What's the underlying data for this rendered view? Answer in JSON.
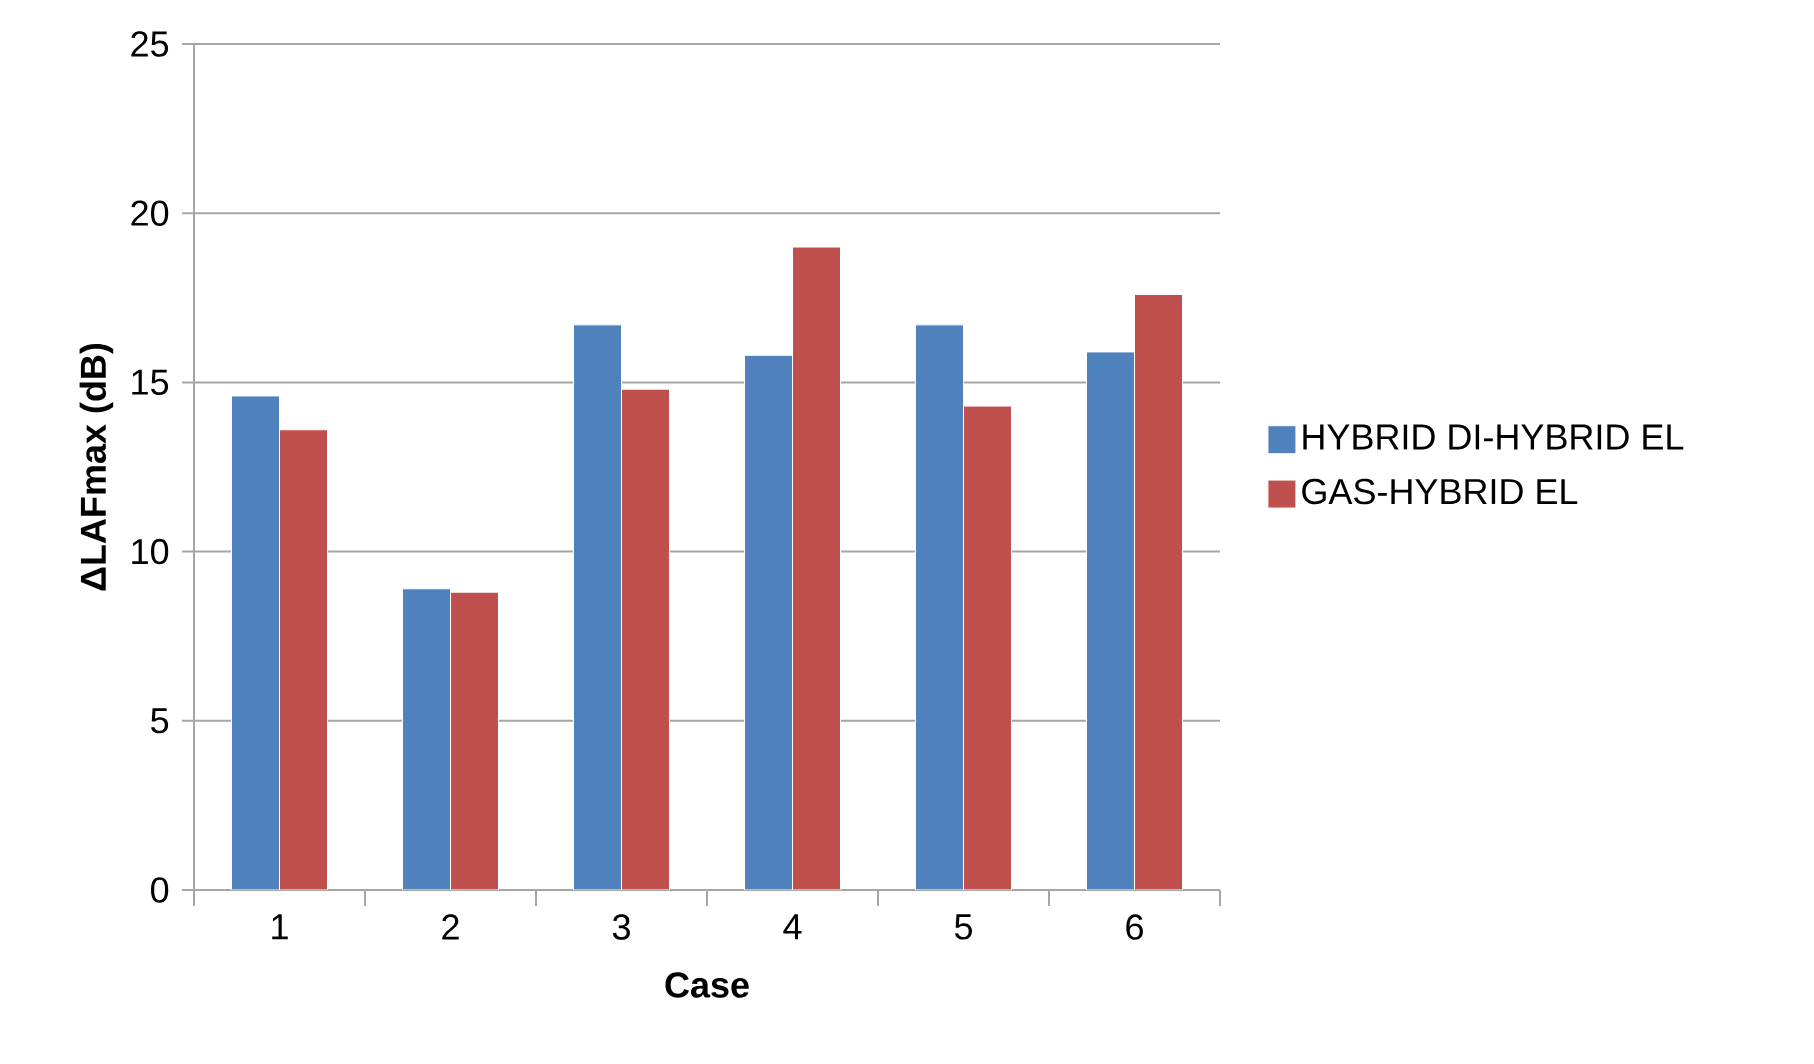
{
  "chart_data": {
    "type": "bar",
    "xlabel": "Case",
    "ylabel": "ΔLAFmax (dB)",
    "categories": [
      "1",
      "2",
      "3",
      "4",
      "5",
      "6"
    ],
    "series": [
      {
        "name": "HYBRID DI-HYBRID EL",
        "color": "#4f81bd",
        "values": [
          14.6,
          8.9,
          16.7,
          15.8,
          16.7,
          15.9
        ]
      },
      {
        "name": "GAS-HYBRID EL",
        "color": "#c0504d",
        "values": [
          13.6,
          8.8,
          14.8,
          19.0,
          14.3,
          17.6
        ]
      }
    ],
    "ylim": [
      0,
      25
    ],
    "yticks": [
      0,
      5,
      10,
      15,
      20,
      25
    ],
    "grid": "y",
    "legend": "right"
  }
}
